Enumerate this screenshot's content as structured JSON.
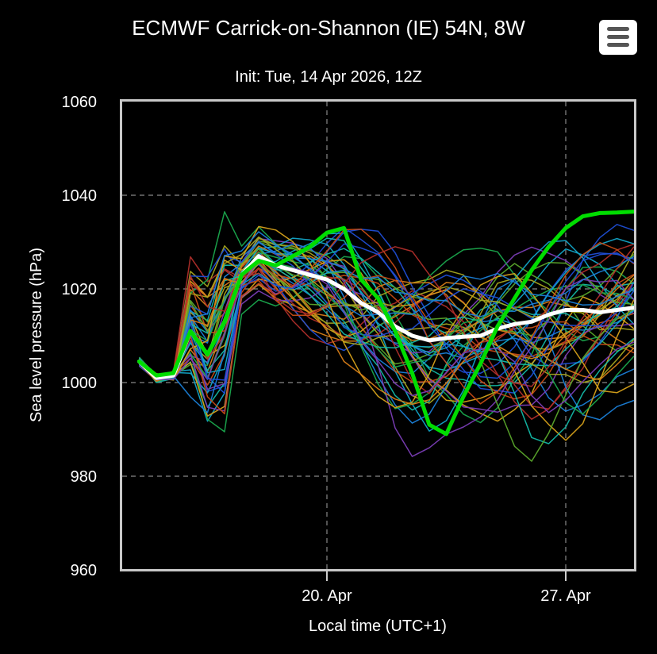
{
  "chart_data": {
    "type": "line",
    "title": "ECMWF Carrick-on-Shannon (IE) 54N, 8W",
    "subtitle": "Init: Tue, 14 Apr 2026, 12Z",
    "xlabel": "Local time (UTC+1)",
    "ylabel": "Sea level pressure (hPa)",
    "ylim": [
      960,
      1060
    ],
    "yticks": [
      "960",
      "980",
      "1000",
      "1020",
      "1040",
      "1060"
    ],
    "xlim": [
      "2026-04-14",
      "2026-04-29"
    ],
    "xticks": [
      {
        "date": "2026-04-20",
        "label": "20. Apr"
      },
      {
        "date": "2026-04-27",
        "label": "27. Apr"
      }
    ],
    "grid": true,
    "background": "#000000",
    "ensemble_member_count": 50,
    "colors": {
      "mean": "#ffffff",
      "control": "#00dd00",
      "members": [
        "#1f4ed6",
        "#1a80d8",
        "#12a7c9",
        "#13b8a6",
        "#1aa84d",
        "#5aa62b",
        "#a7a51f",
        "#d6a11a",
        "#d77d18",
        "#c74b15",
        "#b02e2a",
        "#7a3db6"
      ]
    },
    "series": [
      {
        "role": "control",
        "x": [
          "2026-04-14T12",
          "2026-04-15T00",
          "2026-04-15T12",
          "2026-04-16T00",
          "2026-04-16T12",
          "2026-04-17T00",
          "2026-04-17T12",
          "2026-04-18T00",
          "2026-04-18T12",
          "2026-04-19T00",
          "2026-04-19T12",
          "2026-04-20T00",
          "2026-04-20T12",
          "2026-04-21T00",
          "2026-04-21T12",
          "2026-04-22T00",
          "2026-04-22T12",
          "2026-04-23T00",
          "2026-04-23T12",
          "2026-04-24T00",
          "2026-04-24T12",
          "2026-04-25T00",
          "2026-04-25T12",
          "2026-04-26T00",
          "2026-04-26T12",
          "2026-04-27T00",
          "2026-04-27T12",
          "2026-04-28T00",
          "2026-04-28T12",
          "2026-04-29T00"
        ],
        "values": [
          1004.5,
          1001.5,
          1002,
          1011,
          1006,
          1013,
          1023,
          1026,
          1025,
          1027,
          1029,
          1032,
          1033,
          1022,
          1018,
          1011,
          1002,
          991,
          989,
          997,
          1004,
          1012,
          1018,
          1024,
          1029,
          1033,
          1035.5,
          1036.2,
          1036.3,
          1036.5
        ]
      },
      {
        "role": "mean",
        "x": [
          "2026-04-14T12",
          "2026-04-15T00",
          "2026-04-15T12",
          "2026-04-16T00",
          "2026-04-16T12",
          "2026-04-17T00",
          "2026-04-17T12",
          "2026-04-18T00",
          "2026-04-18T12",
          "2026-04-19T00",
          "2026-04-19T12",
          "2026-04-20T00",
          "2026-04-20T12",
          "2026-04-21T00",
          "2026-04-21T12",
          "2026-04-22T00",
          "2026-04-22T12",
          "2026-04-23T00",
          "2026-04-23T12",
          "2026-04-24T00",
          "2026-04-24T12",
          "2026-04-25T00",
          "2026-04-25T12",
          "2026-04-26T00",
          "2026-04-26T12",
          "2026-04-27T00",
          "2026-04-27T12",
          "2026-04-28T00",
          "2026-04-28T12",
          "2026-04-29T00"
        ],
        "values": [
          1004.5,
          1001,
          1001.5,
          1011,
          1006,
          1013,
          1023,
          1027,
          1025,
          1024,
          1023,
          1022,
          1020,
          1017,
          1015,
          1012,
          1010,
          1009,
          1009.5,
          1009.8,
          1010,
          1011.5,
          1012.5,
          1013,
          1014.5,
          1015.5,
          1015.5,
          1015,
          1015.5,
          1016
        ]
      }
    ]
  }
}
